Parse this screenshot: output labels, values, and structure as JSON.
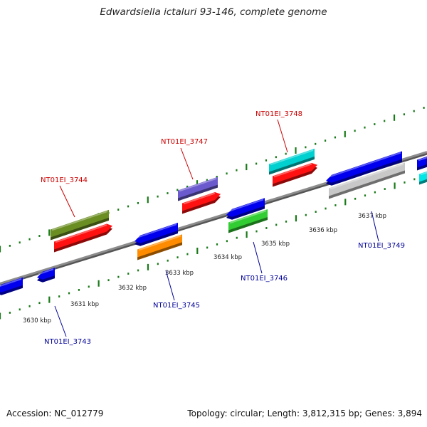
{
  "title": "Edwardsiella ictaluri 93-146, complete genome",
  "footer": {
    "accession": "Accession: NC_012779",
    "topology": "Topology: circular; Length: 3,812,315 bp; Genes: 3,894"
  },
  "scale_labels": [
    "3630 kbp",
    "3631 kbp",
    "3632 kbp",
    "3633 kbp",
    "3634 kbp",
    "3635 kbp",
    "3636 kbp",
    "3637 kbp"
  ],
  "colors": {
    "forward_label": "#cc0000",
    "reverse_label": "#000099",
    "tick": "#1a7a1a",
    "backbone": "#8c8c8c"
  },
  "labels": {
    "forward": [
      "NT01EI_3744",
      "NT01EI_3747",
      "NT01EI_3748"
    ],
    "reverse": [
      "NT01EI_3743",
      "NT01EI_3745",
      "NT01EI_3746",
      "NT01EI_3749"
    ]
  },
  "genes": [
    {
      "id": "g1",
      "color": "#0000ee",
      "strand": "reverse"
    },
    {
      "id": "g2",
      "color": "#0000ee",
      "strand": "reverse"
    },
    {
      "id": "g3",
      "color": "#6b8e23",
      "strand": "forward"
    },
    {
      "id": "g4",
      "color": "#ff1111",
      "strand": "forward"
    },
    {
      "id": "g5",
      "color": "#0000ee",
      "strand": "reverse"
    },
    {
      "id": "g6",
      "color": "#ff8c00",
      "strand": "reverse"
    },
    {
      "id": "g7",
      "color": "#6a5acd",
      "strand": "forward"
    },
    {
      "id": "g8",
      "color": "#ff1111",
      "strand": "forward"
    },
    {
      "id": "g9",
      "color": "#0000ee",
      "strand": "reverse"
    },
    {
      "id": "g10",
      "color": "#32cd32",
      "strand": "reverse"
    },
    {
      "id": "g11",
      "color": "#00d0d0",
      "strand": "forward"
    },
    {
      "id": "g12",
      "color": "#ff1111",
      "strand": "forward"
    },
    {
      "id": "g13",
      "color": "#0000ee",
      "strand": "reverse"
    },
    {
      "id": "g14",
      "color": "#c8c8c8",
      "strand": "reverse"
    },
    {
      "id": "g15",
      "color": "#0000ee",
      "strand": "forward"
    },
    {
      "id": "g16",
      "color": "#00e5e5",
      "strand": "forward"
    }
  ]
}
